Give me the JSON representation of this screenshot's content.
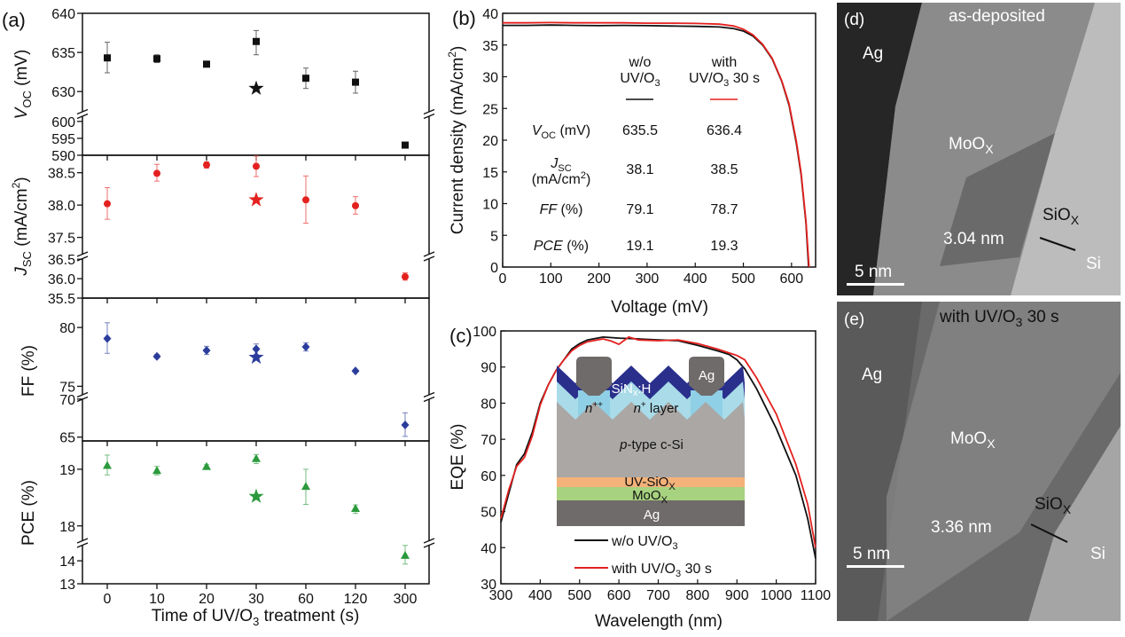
{
  "colors": {
    "black": "#111111",
    "red": "#e3211f",
    "blue": "#2b3d9c",
    "green": "#2b9a3c",
    "sinx": "#2a2f8c",
    "n_layer": "#a9dbe8",
    "n_pp": "#8fd0e6",
    "csi": "#aaa7a5",
    "siox": "#f4b27a",
    "moox": "#a7d27f",
    "ag": "#6f6b6a"
  },
  "chart_data": [
    {
      "panel_label": "(a)",
      "type": "scatter",
      "xlabel": {
        "text": "Time of UV/O",
        "sub": "3",
        "tail": " treatment (s)"
      },
      "categories": [
        "0",
        "10",
        "20",
        "30",
        "60",
        "120",
        "300"
      ],
      "subplots": [
        {
          "ylabel": {
            "symbol": "V",
            "sub": "OC",
            "unit": " (mV)"
          },
          "color": "#111111",
          "marker": "square",
          "ylim_upper": [
            627.3,
            640
          ],
          "ylim_lower": [
            590,
            601.8
          ],
          "yticks_upper": [
            630,
            635,
            640
          ],
          "yticks_lower": [
            590,
            595,
            600
          ],
          "values": [
            634.3,
            634.2,
            633.5,
            636.4,
            631.7,
            631.2,
            593.0
          ],
          "errors": [
            [
              632.4,
              636.3
            ],
            [
              633.7,
              634.7
            ],
            [
              633.4,
              633.7
            ],
            [
              634.7,
              637.8
            ],
            [
              630.4,
              633.0
            ],
            [
              629.8,
              632.6
            ],
            [
              592.8,
              593.2
            ]
          ],
          "star": {
            "category": "30",
            "value": 630.4
          }
        },
        {
          "ylabel": {
            "symbol": "J",
            "sub": "SC",
            "unit": " (mA/cm",
            "sup": "2",
            "close": ")"
          },
          "color": "#e3211f",
          "marker": "circle",
          "ylim_upper": [
            37.22,
            38.77
          ],
          "ylim_lower": [
            35.5,
            36.55
          ],
          "yticks_upper": [
            "37.5",
            "38.0",
            "38.5"
          ],
          "yticks_lower": [
            "35.5",
            "36.0",
            "36.5"
          ],
          "values": [
            38.02,
            38.49,
            38.62,
            38.6,
            38.08,
            37.99,
            36.05
          ],
          "errors": [
            [
              37.78,
              38.27
            ],
            [
              38.37,
              38.63
            ],
            [
              38.57,
              38.67
            ],
            [
              38.44,
              38.8
            ],
            [
              37.72,
              38.45
            ],
            [
              37.86,
              38.13
            ],
            [
              35.96,
              36.15
            ]
          ],
          "star": {
            "category": "30",
            "value": 38.08
          }
        },
        {
          "ylabel": {
            "symbol": "FF (%)"
          },
          "color": "#2b3d9c",
          "marker": "diamond",
          "ylim_upper": [
            74.2,
            82.5
          ],
          "ylim_lower": [
            64.5,
            70.1
          ],
          "yticks_upper": [
            75,
            80
          ],
          "yticks_lower": [
            65,
            70
          ],
          "values": [
            79.06,
            77.54,
            78.05,
            78.17,
            78.35,
            76.3,
            66.6
          ],
          "errors": [
            [
              77.8,
              80.4
            ],
            [
              77.4,
              77.7
            ],
            [
              77.7,
              78.4
            ],
            [
              77.7,
              78.6
            ],
            [
              78.0,
              78.7
            ],
            [
              76.2,
              76.4
            ],
            [
              65.1,
              68.2
            ]
          ],
          "star": {
            "category": "30",
            "value": 77.46
          }
        },
        {
          "ylabel": {
            "symbol": "PCE (%)"
          },
          "color": "#2b9a3c",
          "marker": "triangle",
          "ylim_upper": [
            17.73,
            19.5
          ],
          "ylim_lower": [
            13,
            14.7
          ],
          "yticks_upper": [
            18,
            19
          ],
          "yticks_lower": [
            13,
            14
          ],
          "values": [
            19.07,
            18.98,
            19.05,
            19.19,
            18.7,
            18.31,
            14.24
          ],
          "errors": [
            [
              18.9,
              19.25
            ],
            [
              18.9,
              19.05
            ],
            [
              19.02,
              19.08
            ],
            [
              19.1,
              19.26
            ],
            [
              18.38,
              19.0
            ],
            [
              18.22,
              18.37
            ],
            [
              13.86,
              14.67
            ]
          ],
          "star": {
            "category": "30",
            "value": 18.52
          }
        }
      ]
    },
    {
      "panel_label": "(b)",
      "type": "line",
      "xlabel": "Voltage (mV)",
      "ylabel": {
        "text": "Current density (mA/cm",
        "sup": "2",
        "close": ")"
      },
      "xlim": [
        0,
        650
      ],
      "ylim": [
        0,
        40
      ],
      "xticks": [
        0,
        100,
        200,
        300,
        400,
        500,
        600
      ],
      "yticks": [
        0,
        5,
        10,
        15,
        20,
        25,
        30,
        35,
        40
      ],
      "series": [
        {
          "color": "#111111",
          "points": [
            [
              0,
              38.1
            ],
            [
              50,
              38.1
            ],
            [
              100,
              38.15
            ],
            [
              150,
              38.1
            ],
            [
              200,
              38.05
            ],
            [
              250,
              38.1
            ],
            [
              300,
              38.05
            ],
            [
              350,
              38.0
            ],
            [
              400,
              37.95
            ],
            [
              450,
              37.85
            ],
            [
              480,
              37.6
            ],
            [
              500,
              37.2
            ],
            [
              520,
              36.4
            ],
            [
              540,
              35.0
            ],
            [
              560,
              32.8
            ],
            [
              580,
              29.2
            ],
            [
              595,
              25.5
            ],
            [
              610,
              19.5
            ],
            [
              620,
              14.5
            ],
            [
              630,
              7.0
            ],
            [
              635.5,
              0
            ]
          ]
        },
        {
          "color": "#e3211f",
          "points": [
            [
              0,
              38.5
            ],
            [
              50,
              38.5
            ],
            [
              100,
              38.55
            ],
            [
              150,
              38.5
            ],
            [
              200,
              38.5
            ],
            [
              250,
              38.5
            ],
            [
              300,
              38.45
            ],
            [
              350,
              38.45
            ],
            [
              400,
              38.4
            ],
            [
              450,
              38.3
            ],
            [
              480,
              38.0
            ],
            [
              500,
              37.5
            ],
            [
              520,
              36.6
            ],
            [
              540,
              35.1
            ],
            [
              560,
              32.9
            ],
            [
              580,
              29.3
            ],
            [
              595,
              25.7
            ],
            [
              610,
              19.8
            ],
            [
              620,
              14.8
            ],
            [
              630,
              7.3
            ],
            [
              636.4,
              0
            ]
          ]
        }
      ],
      "table": {
        "columns": [
          {
            "line1": "w/o",
            "line2": "UV/O",
            "sub": "3",
            "tail": "",
            "color": "#111111"
          },
          {
            "line1": "with",
            "line2": "UV/O",
            "sub": "3",
            "tail": " 30 s",
            "color": "#e3211f"
          }
        ],
        "rows": [
          {
            "symbol": "V",
            "sub": "OC",
            "unit": " (mV)",
            "values": [
              "635.5",
              "636.4"
            ]
          },
          {
            "symbol": "J",
            "sub": "SC",
            "unit": "(mA/cm",
            "sup": "2",
            "close": ")",
            "values": [
              "38.1",
              "38.5"
            ]
          },
          {
            "symbol": "FF",
            "unit": " (%)",
            "values": [
              "79.1",
              "78.7"
            ]
          },
          {
            "symbol": "PCE",
            "unit": " (%)",
            "values": [
              "19.1",
              "19.3"
            ]
          }
        ]
      }
    },
    {
      "panel_label": "(c)",
      "type": "line",
      "xlabel": "Wavelength (nm)",
      "ylabel": "EQE (%)",
      "xlim": [
        300,
        1100
      ],
      "ylim": [
        30,
        100
      ],
      "xticks": [
        300,
        400,
        500,
        600,
        700,
        800,
        900,
        1000,
        1100
      ],
      "yticks": [
        30,
        40,
        50,
        60,
        70,
        80,
        90,
        100
      ],
      "legend_position": "bottom-center",
      "series": [
        {
          "name_parts": {
            "text": "w/o UV/O",
            "sub": "3",
            "tail": ""
          },
          "color": "#111111",
          "points": [
            [
              300,
              47
            ],
            [
              320,
              55
            ],
            [
              340,
              63
            ],
            [
              360,
              66
            ],
            [
              380,
              72
            ],
            [
              400,
              80
            ],
            [
              420,
              85
            ],
            [
              440,
              89
            ],
            [
              460,
              92
            ],
            [
              480,
              95
            ],
            [
              500,
              96.5
            ],
            [
              520,
              97.5
            ],
            [
              560,
              98.3
            ],
            [
              600,
              98
            ],
            [
              650,
              97.8
            ],
            [
              700,
              97.5
            ],
            [
              750,
              97.3
            ],
            [
              800,
              96
            ],
            [
              850,
              94.5
            ],
            [
              880,
              93.5
            ],
            [
              900,
              92
            ],
            [
              920,
              89.5
            ],
            [
              950,
              84
            ],
            [
              1000,
              73
            ],
            [
              1050,
              60
            ],
            [
              1080,
              48
            ],
            [
              1100,
              37
            ]
          ]
        },
        {
          "name_parts": {
            "text": "with UV/O",
            "sub": "3",
            "tail": " 30 s"
          },
          "color": "#e3211f",
          "points": [
            [
              300,
              48
            ],
            [
              320,
              56
            ],
            [
              340,
              62.5
            ],
            [
              360,
              65
            ],
            [
              380,
              71
            ],
            [
              400,
              79.5
            ],
            [
              420,
              85
            ],
            [
              440,
              89
            ],
            [
              460,
              92
            ],
            [
              480,
              94.5
            ],
            [
              500,
              96
            ],
            [
              520,
              97
            ],
            [
              560,
              97.8
            ],
            [
              580,
              97.2
            ],
            [
              600,
              96.3
            ],
            [
              625,
              98.3
            ],
            [
              650,
              97.5
            ],
            [
              700,
              97.3
            ],
            [
              750,
              97.5
            ],
            [
              800,
              96.5
            ],
            [
              850,
              95
            ],
            [
              900,
              93.2
            ],
            [
              920,
              92
            ],
            [
              950,
              87
            ],
            [
              1000,
              77
            ],
            [
              1050,
              63
            ],
            [
              1080,
              52
            ],
            [
              1100,
              40
            ]
          ]
        }
      ],
      "inset": {
        "sinx": {
          "text": "SiN",
          "sub": "x",
          "tail": ":H"
        },
        "ag_finger": "Ag",
        "npp": {
          "text": "n",
          "sup": "++"
        },
        "nlayer": {
          "text": "n",
          "sup": "+",
          "tail": " layer"
        },
        "csi": {
          "italic": "p",
          "tail": "-type c-Si"
        },
        "siox": {
          "text": "UV-SiO",
          "sub": "X"
        },
        "moox": {
          "text": "MoO",
          "sub": "X"
        },
        "ag_back": "Ag"
      }
    }
  ],
  "tem": {
    "d": {
      "label": "(d)",
      "title": "as-deposited",
      "ag": "Ag",
      "moox": {
        "text": "MoO",
        "sub": "X"
      },
      "siox": {
        "text": "SiO",
        "sub": "X"
      },
      "thickness": "3.04 nm",
      "si": "Si",
      "scale": "5 nm"
    },
    "e": {
      "label": "(e)",
      "title": {
        "text": "with UV/O",
        "sub": "3",
        "tail": " 30 s"
      },
      "ag": "Ag",
      "moox": {
        "text": "MoO",
        "sub": "X"
      },
      "siox": {
        "text": "SiO",
        "sub": "X"
      },
      "thickness": "3.36 nm",
      "si": "Si",
      "scale": "5 nm"
    }
  }
}
